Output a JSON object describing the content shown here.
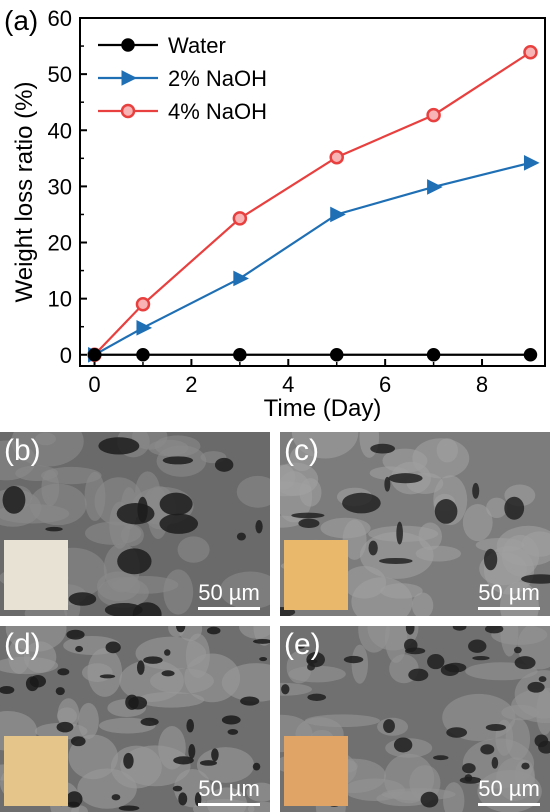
{
  "panel_a_label": "(a)",
  "chart_data": {
    "type": "line",
    "xlabel": "Time (Day)",
    "ylabel": "Weight loss ratio (%)",
    "xlim": [
      -0.3,
      9.3
    ],
    "ylim": [
      -2,
      60
    ],
    "xticks": [
      0,
      2,
      4,
      6,
      8
    ],
    "yticks": [
      0,
      10,
      20,
      30,
      40,
      50,
      60
    ],
    "legend_position": "top-left",
    "grid": false,
    "x": [
      0,
      1,
      3,
      5,
      7,
      9
    ],
    "series": [
      {
        "name": "Water",
        "values": [
          0,
          0,
          0,
          0,
          0,
          0
        ],
        "color": "#000000",
        "marker": "circle"
      },
      {
        "name": "2% NaOH",
        "values": [
          0,
          4.8,
          13.6,
          25.0,
          29.9,
          34.2
        ],
        "color": "#1f6fb5",
        "marker": "triangle-right"
      },
      {
        "name": "4% NaOH",
        "values": [
          0,
          9.0,
          24.3,
          35.2,
          42.7,
          53.9
        ],
        "color": "#e8403f",
        "marker": "circle-hollow"
      }
    ]
  },
  "sem_panels": [
    {
      "label": "(b)",
      "scale": "50 µm",
      "inset_color": "#e8e2d4"
    },
    {
      "label": "(c)",
      "scale": "50 µm",
      "inset_color": "#e9b86a"
    },
    {
      "label": "(d)",
      "scale": "50 µm",
      "inset_color": "#e6c58a"
    },
    {
      "label": "(e)",
      "scale": "50 µm",
      "inset_color": "#e0a466"
    }
  ]
}
